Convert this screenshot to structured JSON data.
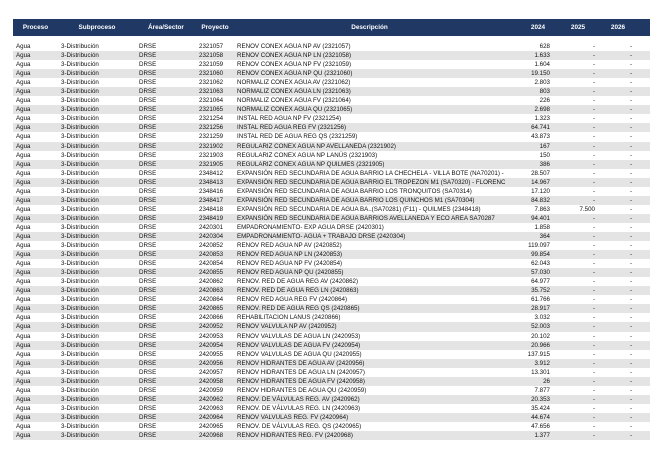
{
  "table": {
    "headers": [
      "Proceso",
      "Subproceso",
      "Área/Sector",
      "Proyecto",
      "Descripción",
      "2024",
      "2025",
      "2026"
    ],
    "rows": [
      [
        "Agua",
        "3-Distribución",
        "DRSE",
        "2321057",
        "RENOV CONEX AGUA NP  AV (2321057)",
        "628",
        "-",
        "-"
      ],
      [
        "Agua",
        "3-Distribución",
        "DRSE",
        "2321058",
        "RENOV CONEX AGUA NP  LN (2321058)",
        "1.633",
        "-",
        "-"
      ],
      [
        "Agua",
        "3-Distribución",
        "DRSE",
        "2321059",
        "RENOV CONEX AGUA NP  FV (2321059)",
        "1.604",
        "-",
        "-"
      ],
      [
        "Agua",
        "3-Distribución",
        "DRSE",
        "2321060",
        "RENOV CONEX AGUA NP  QU (2321060)",
        "19.150",
        "-",
        "-"
      ],
      [
        "Agua",
        "3-Distribución",
        "DRSE",
        "2321062",
        "NORMALIZ CONEX AGUA  AV (2321062)",
        "2.803",
        "-",
        "-"
      ],
      [
        "Agua",
        "3-Distribución",
        "DRSE",
        "2321063",
        "NORMALIZ CONEX AGUA  LN (2321063)",
        "803",
        "-",
        "-"
      ],
      [
        "Agua",
        "3-Distribución",
        "DRSE",
        "2321064",
        "NORMALIZ CONEX AGUA  FV (2321064)",
        "226",
        "-",
        "-"
      ],
      [
        "Agua",
        "3-Distribución",
        "DRSE",
        "2321065",
        "NORMALIZ CONEX AGUA  QU (2321065)",
        "2.698",
        "-",
        "-"
      ],
      [
        "Agua",
        "3-Distribución",
        "DRSE",
        "2321254",
        "INSTAL RED AGUA NP FV (2321254)",
        "1.323",
        "-",
        "-"
      ],
      [
        "Agua",
        "3-Distribución",
        "DRSE",
        "2321256",
        "INSTAL RED AGUA REG FV (2321256)",
        "64.741",
        "-",
        "-"
      ],
      [
        "Agua",
        "3-Distribución",
        "DRSE",
        "2321259",
        "INSTAL RED DE AGUA REG QS (2321259)",
        "43.873",
        "-",
        "-"
      ],
      [
        "Agua",
        "3-Distribución",
        "DRSE",
        "2321902",
        "REGULARIZ CONEX AGUA NP AVELLANEDA (2321902)",
        "167",
        "-",
        "-"
      ],
      [
        "Agua",
        "3-Distribución",
        "DRSE",
        "2321903",
        "REGULARIZ CONEX AGUA NP LANÚS (2321903)",
        "150",
        "-",
        "-"
      ],
      [
        "Agua",
        "3-Distribución",
        "DRSE",
        "2321905",
        "REGULARIZ CONEX AGUA NP QUILMES (2321905)",
        "386",
        "-",
        "-"
      ],
      [
        "Agua",
        "3-Distribución",
        "DRSE",
        "2348412",
        "EXPANSIÓN RED SECUNDARIA DE AGUA BARRIO LA CHECHELA - VILLA BOTE (NA70201) - COOI",
        "28.507",
        "-",
        "-"
      ],
      [
        "Agua",
        "3-Distribución",
        "DRSE",
        "2348413",
        "EXPANSIÓN RED SECUNDARIA DE AGUA BARRIO EL TROPEZON M1 (SA70320) - FLORENCIO VA-",
        "14.967",
        "-",
        "-"
      ],
      [
        "Agua",
        "3-Distribución",
        "DRSE",
        "2348416",
        "EXPANSIÓN RED SECUNDARIA DE AGUA BARRIO LOS TRONQUITOS (SA70314)",
        "17.120",
        "-",
        "-"
      ],
      [
        "Agua",
        "3-Distribución",
        "DRSE",
        "2348417",
        "EXPANSIÓN RED SECUNDARIA DE AGUA BARRIO LOS QUINCHOS M1 (SA70304)",
        "84.832",
        "-",
        "-"
      ],
      [
        "Agua",
        "3-Distribución",
        "DRSE",
        "2348418",
        "EXPANSIÓN RED SECUNDARIA DE AGUA BA..(SA70281) (F11) - QUILMES (2348418)",
        "7.863",
        "7.500",
        "-"
      ],
      [
        "Agua",
        "3-Distribución",
        "DRSE",
        "2348419",
        "EXPANSIÓN RED SECUNDARIA DE AGUA BARRIOS AVELLANEDA Y ECO AREA SA70287",
        "94.401",
        "-",
        "-"
      ],
      [
        "Agua",
        "3-Distribución",
        "DRSE",
        "2420301",
        "EMPADRONAMIENTO- EXP AGUA DRSE (2420301)",
        "1.858",
        "-",
        "-"
      ],
      [
        "Agua",
        "3-Distribución",
        "DRSE",
        "2420304",
        "EMPADRONAMIENTO- AGUA + TRABAJO DRSE (2420304)",
        "364",
        "-",
        "-"
      ],
      [
        "Agua",
        "3-Distribución",
        "DRSE",
        "2420852",
        "RENOV RED AGUA NP AV (2420852)",
        "119.097",
        "-",
        "-"
      ],
      [
        "Agua",
        "3-Distribución",
        "DRSE",
        "2420853",
        "RENOV RED AGUA NP LN (2420853)",
        "99.854",
        "-",
        "-"
      ],
      [
        "Agua",
        "3-Distribución",
        "DRSE",
        "2420854",
        "RENOV RED AGUA NP  FV (2420854)",
        "62.043",
        "-",
        "-"
      ],
      [
        "Agua",
        "3-Distribución",
        "DRSE",
        "2420855",
        "RENOV RED AGUA NP QU (2420855)",
        "57.030",
        "-",
        "-"
      ],
      [
        "Agua",
        "3-Distribución",
        "DRSE",
        "2420862",
        "RENOV. RED DE AGUA REG AV (2420862)",
        "64.977",
        "-",
        "-"
      ],
      [
        "Agua",
        "3-Distribución",
        "DRSE",
        "2420863",
        "RENOV. RED DE AGUA REG LN (2420863)",
        "35.752",
        "-",
        "-"
      ],
      [
        "Agua",
        "3-Distribución",
        "DRSE",
        "2420864",
        "RENOV RED AGUA REG  FV (2420864)",
        "61.766",
        "-",
        "-"
      ],
      [
        "Agua",
        "3-Distribución",
        "DRSE",
        "2420865",
        "RENOV. RED DE AGUA REG QS (2420865)",
        "28.917",
        "-",
        "-"
      ],
      [
        "Agua",
        "3-Distribución",
        "DRSE",
        "2420866",
        "REHABILITACION LANUS (2420866)",
        "3.032",
        "-",
        "-"
      ],
      [
        "Agua",
        "3-Distribución",
        "DRSE",
        "2420952",
        "RENOV VALVULA NP AV (2420952)",
        "52.003",
        "-",
        "-"
      ],
      [
        "Agua",
        "3-Distribución",
        "DRSE",
        "2420953",
        "RENOV VALVULAS DE  AGUA  LN (2420953)",
        "20.102",
        "-",
        "-"
      ],
      [
        "Agua",
        "3-Distribución",
        "DRSE",
        "2420954",
        "RENOV VALVULAS DE  AGUA  FV (2420954)",
        "20.966",
        "-",
        "-"
      ],
      [
        "Agua",
        "3-Distribución",
        "DRSE",
        "2420955",
        "RENOV VALVULAS DE  AGUA  QU (2420955)",
        "137.915",
        "-",
        "-"
      ],
      [
        "Agua",
        "3-Distribución",
        "DRSE",
        "2420956",
        "RENOV HIDRANTES DE AGUA  AV (2420956)",
        "3.912",
        "-",
        "-"
      ],
      [
        "Agua",
        "3-Distribución",
        "DRSE",
        "2420957",
        "RENOV HIDRANTES DE AGUA  LN (2420957)",
        "13.301",
        "-",
        "-"
      ],
      [
        "Agua",
        "3-Distribución",
        "DRSE",
        "2420958",
        "RENOV HIDRANTES DE AGUA  FV (2420958)",
        "26",
        "-",
        "-"
      ],
      [
        "Agua",
        "3-Distribución",
        "DRSE",
        "2420959",
        "RENOV HIDRANTES DE AGUA  QU (2420959)",
        "7.877",
        "-",
        "-"
      ],
      [
        "Agua",
        "3-Distribución",
        "DRSE",
        "2420962",
        "RENOV. DE VÁLVULAS REG. AV (2420962)",
        "20.353",
        "-",
        "-"
      ],
      [
        "Agua",
        "3-Distribución",
        "DRSE",
        "2420963",
        "RENOV. DE VÁLVULAS REG. LN (2420963)",
        "35.424",
        "-",
        "-"
      ],
      [
        "Agua",
        "3-Distribución",
        "DRSE",
        "2420964",
        "RENOV VALVULAS REG. FV (2420964)",
        "44.674",
        "-",
        "-"
      ],
      [
        "Agua",
        "3-Distribución",
        "DRSE",
        "2420965",
        "RENOV. DE VÁLVULAS REG. QS (2420965)",
        "47.656",
        "-",
        "-"
      ],
      [
        "Agua",
        "3-Distribución",
        "DRSE",
        "2420968",
        "RENOV HIDRANTES REG. FV (2420968)",
        "1.377",
        "-",
        "-"
      ]
    ]
  }
}
